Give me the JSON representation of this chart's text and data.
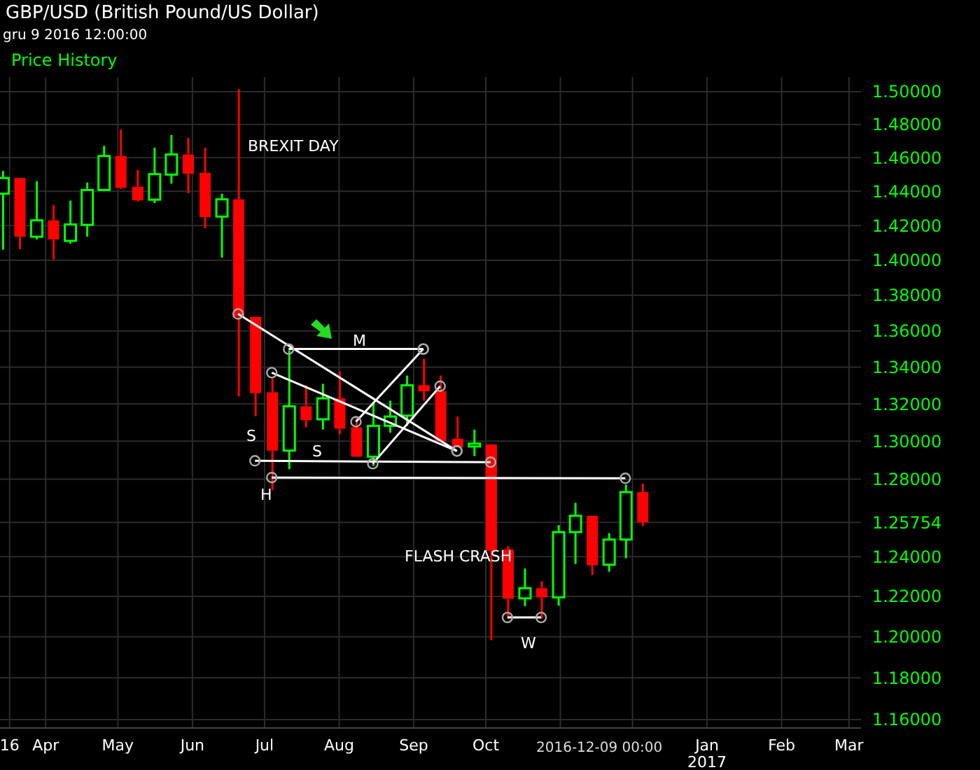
{
  "chart_data": {
    "type": "candlestick",
    "title": "GBP/USD (British Pound/US Dollar)",
    "subtitle": "gru 9 2016 12:00:00",
    "annotations": [
      "Price History",
      "2016-12-09 00:00",
      "BREXIT DAY",
      "FLASH CRASH",
      "M",
      "S",
      "S",
      "H",
      "W"
    ],
    "x": [
      "2016-03-14",
      "2016-03-21",
      "2016-03-28",
      "2016-04-04",
      "2016-04-11",
      "2016-04-18",
      "2016-04-25",
      "2016-05-02",
      "2016-05-09",
      "2016-05-16",
      "2016-05-23",
      "2016-05-30",
      "2016-06-06",
      "2016-06-13",
      "2016-06-20",
      "2016-06-27",
      "2016-07-04",
      "2016-07-11",
      "2016-07-18",
      "2016-07-25",
      "2016-08-01",
      "2016-08-08",
      "2016-08-15",
      "2016-08-22",
      "2016-08-29",
      "2016-09-05",
      "2016-09-12",
      "2016-09-19",
      "2016-09-26",
      "2016-10-03",
      "2016-10-10",
      "2016-10-17",
      "2016-10-24",
      "2016-10-31",
      "2016-11-07",
      "2016-11-14",
      "2016-11-21",
      "2016-11-28",
      "2016-12-05"
    ],
    "ohlc": [
      [
        1.4386,
        1.4521,
        1.406,
        1.4479
      ],
      [
        1.4479,
        1.4479,
        1.4063,
        1.4135
      ],
      [
        1.4135,
        1.446,
        1.4119,
        1.423
      ],
      [
        1.423,
        1.432,
        1.4004,
        1.4119
      ],
      [
        1.4111,
        1.4345,
        1.4095,
        1.4206
      ],
      [
        1.4204,
        1.4452,
        1.4135,
        1.4408
      ],
      [
        1.4408,
        1.4671,
        1.4408,
        1.461
      ],
      [
        1.461,
        1.477,
        1.4413,
        1.4421
      ],
      [
        1.4427,
        1.4527,
        1.4339,
        1.4347
      ],
      [
        1.4351,
        1.466,
        1.4331,
        1.4502
      ],
      [
        1.4499,
        1.4736,
        1.4446,
        1.4619
      ],
      [
        1.4619,
        1.4719,
        1.4389,
        1.4504
      ],
      [
        1.451,
        1.466,
        1.4184,
        1.4249
      ],
      [
        1.4252,
        1.4386,
        1.4015,
        1.4353
      ],
      [
        1.4353,
        1.5015,
        1.324,
        1.3679
      ],
      [
        1.3679,
        1.3679,
        1.3134,
        1.3258
      ],
      [
        1.3263,
        1.3339,
        1.2742,
        1.295
      ],
      [
        1.295,
        1.3493,
        1.2852,
        1.3187
      ],
      [
        1.3187,
        1.3301,
        1.3074,
        1.3112
      ],
      [
        1.3117,
        1.3309,
        1.3062,
        1.323
      ],
      [
        1.323,
        1.3377,
        1.3037,
        1.3067
      ],
      [
        1.3074,
        1.3127,
        1.2918,
        1.2918
      ],
      [
        1.2918,
        1.3202,
        1.2869,
        1.3082
      ],
      [
        1.3082,
        1.3217,
        1.3045,
        1.3132
      ],
      [
        1.3137,
        1.3354,
        1.3082,
        1.3301
      ],
      [
        1.3301,
        1.3446,
        1.3217,
        1.3268
      ],
      [
        1.3268,
        1.3354,
        1.3,
        1.3
      ],
      [
        1.3013,
        1.3132,
        1.2968,
        1.2968
      ],
      [
        1.2972,
        1.3062,
        1.2921,
        1.2987
      ],
      [
        1.2983,
        1.2983,
        1.1983,
        1.243
      ],
      [
        1.2437,
        1.2453,
        1.209,
        1.2188
      ],
      [
        1.219,
        1.234,
        1.2151,
        1.2241
      ],
      [
        1.2241,
        1.2276,
        1.209,
        1.2195
      ],
      [
        1.2195,
        1.2561,
        1.2153,
        1.2525
      ],
      [
        1.2525,
        1.2676,
        1.2363,
        1.2609
      ],
      [
        1.2609,
        1.2609,
        1.2307,
        1.2356
      ],
      [
        1.2359,
        1.252,
        1.2324,
        1.2487
      ],
      [
        1.2487,
        1.2771,
        1.2392,
        1.2732
      ],
      [
        1.2732,
        1.2776,
        1.2556,
        1.2575
      ]
    ],
    "colors": [
      "#00ff00",
      "#ff0000",
      "#00ff00",
      "#ff0000",
      "#00ff00",
      "#00ff00",
      "#00ff00",
      "#ff0000",
      "#ff0000",
      "#00ff00",
      "#00ff00",
      "#ff0000",
      "#ff0000",
      "#00ff00",
      "#ff0000",
      "#ff0000",
      "#ff0000",
      "#00ff00",
      "#ff0000",
      "#00ff00",
      "#ff0000",
      "#ff0000",
      "#00ff00",
      "#00ff00",
      "#00ff00",
      "#ff0000",
      "#ff0000",
      "#ff0000",
      "#00ff00",
      "#ff0000",
      "#ff0000",
      "#00ff00",
      "#ff0000",
      "#00ff00",
      "#00ff00",
      "#ff0000",
      "#00ff00",
      "#00ff00",
      "#ff0000"
    ],
    "series": [
      {
        "type": "line",
        "color": "#ffffff",
        "marker": "circle",
        "x": [
          "2016-06-20",
          "2016-09-19"
        ],
        "values": [
          1.3695,
          1.2948
        ]
      },
      {
        "type": "line",
        "color": "#ffffff",
        "marker": "circle",
        "x": [
          "2016-07-04",
          "2016-09-19"
        ],
        "values": [
          1.337,
          1.2948
        ]
      },
      {
        "type": "line",
        "color": "#ffffff",
        "marker": "circle",
        "x": [
          "2016-07-11",
          "2016-09-05"
        ],
        "values": [
          1.35,
          1.35
        ]
      },
      {
        "type": "line",
        "color": "#ffffff",
        "marker": "circle",
        "x": [
          "2016-08-08",
          "2016-09-05"
        ],
        "values": [
          1.3104,
          1.35
        ]
      },
      {
        "type": "line",
        "color": "#ffffff",
        "marker": "circle",
        "x": [
          "2016-08-15",
          "2016-09-12"
        ],
        "values": [
          1.2881,
          1.3296
        ]
      },
      {
        "type": "line",
        "color": "#ffffff",
        "marker": "circle",
        "x": [
          "2016-06-27",
          "2016-10-03"
        ],
        "values": [
          1.2896,
          1.2889
        ]
      },
      {
        "type": "line",
        "color": "#ffffff",
        "marker": "circle",
        "x": [
          "2016-07-04",
          "2016-11-28"
        ],
        "values": [
          1.2808,
          1.2804
        ]
      },
      {
        "type": "line",
        "color": "#ffffff",
        "marker": "circle",
        "x": [
          "2016-10-10",
          "2016-10-24"
        ],
        "values": [
          1.2095,
          1.2095
        ]
      }
    ],
    "xlim": [
      "2016-03-13",
      "2017-03-06"
    ],
    "xticks": [
      {
        "value": "2016-03-17",
        "label": "16"
      },
      {
        "value": "2016-04-01",
        "label": "Apr"
      },
      {
        "value": "2016-05-01",
        "label": "May"
      },
      {
        "value": "2016-06-01",
        "label": "Jun"
      },
      {
        "value": "2016-07-01",
        "label": "Jul"
      },
      {
        "value": "2016-08-01",
        "label": "Aug"
      },
      {
        "value": "2016-09-01",
        "label": "Sep"
      },
      {
        "value": "2016-10-01",
        "label": "Oct"
      },
      {
        "value": "2016-11-01",
        "label": null
      },
      {
        "value": "2016-12-01",
        "label": null
      },
      {
        "value": "2017-01-01",
        "label": "Jan\n2017"
      },
      {
        "value": "2017-02-01",
        "label": "Feb"
      },
      {
        "value": "2017-03-01",
        "label": "Mar"
      }
    ],
    "ylim": [
      1.156,
      1.509
    ],
    "yticks": [
      {
        "value": 1.16,
        "label": "1.16000"
      },
      {
        "value": 1.18,
        "label": "1.18000"
      },
      {
        "value": 1.2,
        "label": "1.20000"
      },
      {
        "value": 1.22,
        "label": "1.22000"
      },
      {
        "value": 1.24,
        "label": "1.24000"
      },
      {
        "value": 1.25754,
        "label": "1.25754"
      },
      {
        "value": 1.28,
        "label": "1.28000"
      },
      {
        "value": 1.3,
        "label": "1.30000"
      },
      {
        "value": 1.32,
        "label": "1.32000"
      },
      {
        "value": 1.34,
        "label": "1.34000"
      },
      {
        "value": 1.36,
        "label": "1.36000"
      },
      {
        "value": 1.38,
        "label": "1.38000"
      },
      {
        "value": 1.4,
        "label": "1.40000"
      },
      {
        "value": 1.42,
        "label": "1.42000"
      },
      {
        "value": 1.44,
        "label": "1.44000"
      },
      {
        "value": 1.46,
        "label": "1.46000"
      },
      {
        "value": 1.48,
        "label": "1.48000"
      },
      {
        "value": 1.5,
        "label": "1.50000"
      }
    ],
    "log": true,
    "grid": true
  }
}
